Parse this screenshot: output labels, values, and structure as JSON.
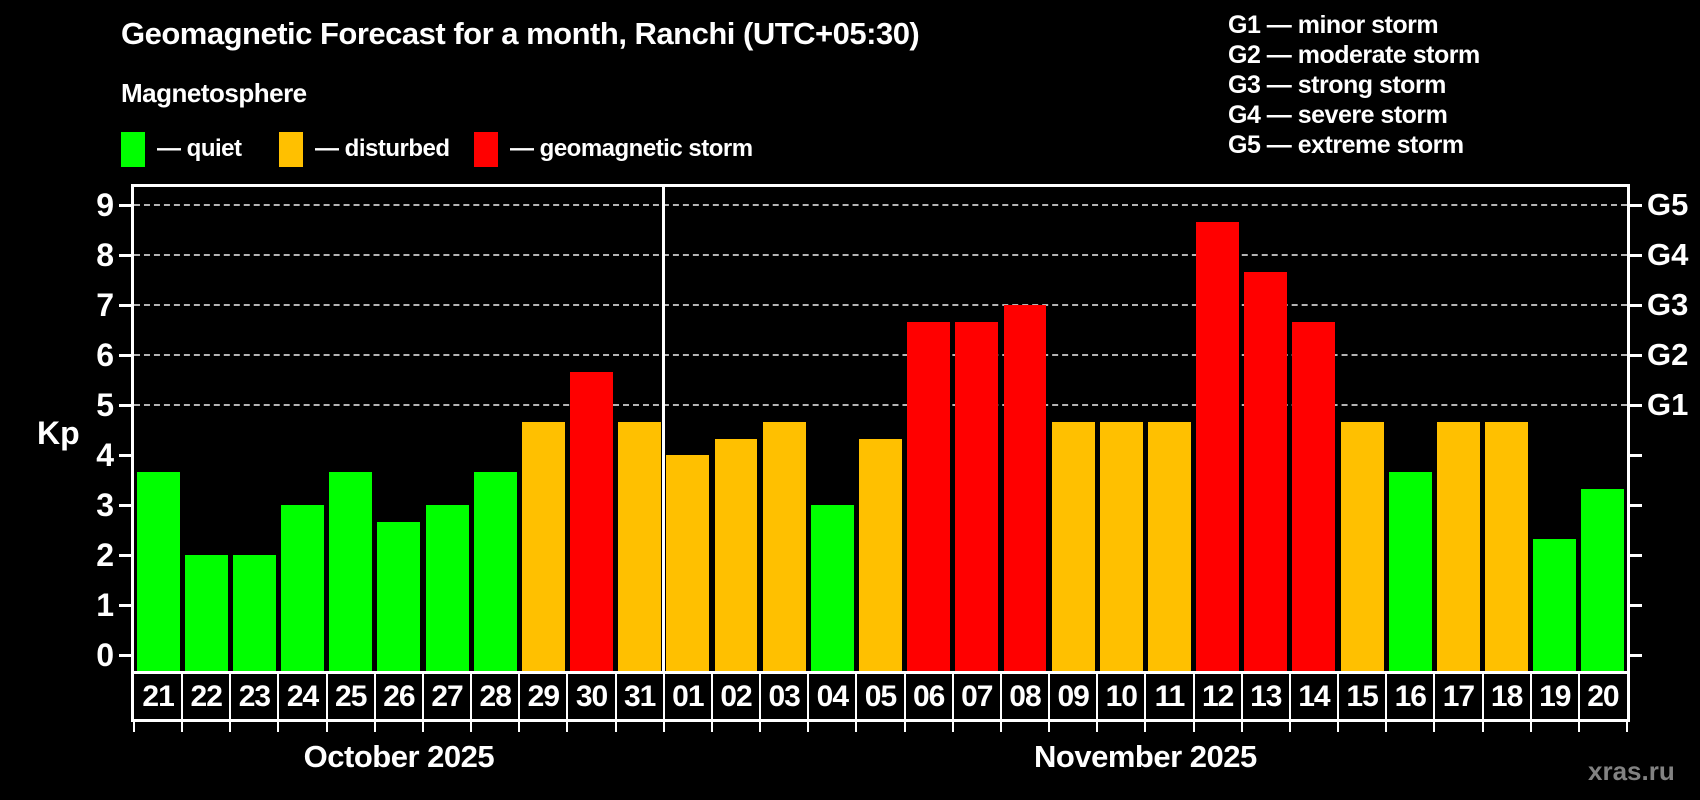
{
  "title": "Geomagnetic Forecast for a month, Ranchi (UTC+05:30)",
  "subtitle": "Magnetosphere",
  "legend": [
    {
      "key": "quiet",
      "label": "— quiet",
      "color": "#00ff00"
    },
    {
      "key": "disturbed",
      "label": "— disturbed",
      "color": "#ffc000"
    },
    {
      "key": "storm",
      "label": "— geomagnetic storm",
      "color": "#ff0000"
    }
  ],
  "g_legend": [
    "G1 — minor storm",
    "G2 — moderate storm",
    "G3 — strong storm",
    "G4 — severe storm",
    "G5 — extreme storm"
  ],
  "axis": {
    "kp_label": "Kp",
    "left_ticks": [
      "0",
      "1",
      "2",
      "3",
      "4",
      "5",
      "6",
      "7",
      "8",
      "9"
    ],
    "right_g_labels": [
      {
        "kp": 5,
        "label": "G1"
      },
      {
        "kp": 6,
        "label": "G2"
      },
      {
        "kp": 7,
        "label": "G3"
      },
      {
        "kp": 8,
        "label": "G4"
      },
      {
        "kp": 9,
        "label": "G5"
      }
    ],
    "grid_levels": [
      5,
      6,
      7,
      8,
      9
    ]
  },
  "watermark": "xras.ru",
  "chart_data": {
    "type": "bar",
    "title": "Geomagnetic Forecast for a month, Ranchi (UTC+05:30)",
    "xlabel": "",
    "ylabel": "Kp",
    "ylim": [
      0,
      9.33
    ],
    "grid": "dashed horizontal lines at Kp 5,6,7,8,9 (G1–G5 levels)",
    "legend_position": "top-left",
    "status_colors": {
      "quiet": "#00ff00",
      "disturbed": "#ffc000",
      "storm": "#ff0000"
    },
    "months": [
      {
        "label": "October 2025",
        "bars": [
          {
            "day": "21",
            "kp": 3.67,
            "status": "quiet"
          },
          {
            "day": "22",
            "kp": 2.0,
            "status": "quiet"
          },
          {
            "day": "23",
            "kp": 2.0,
            "status": "quiet"
          },
          {
            "day": "24",
            "kp": 3.0,
            "status": "quiet"
          },
          {
            "day": "25",
            "kp": 3.67,
            "status": "quiet"
          },
          {
            "day": "26",
            "kp": 2.67,
            "status": "quiet"
          },
          {
            "day": "27",
            "kp": 3.0,
            "status": "quiet"
          },
          {
            "day": "28",
            "kp": 3.67,
            "status": "quiet"
          },
          {
            "day": "29",
            "kp": 4.67,
            "status": "disturbed"
          },
          {
            "day": "30",
            "kp": 5.67,
            "status": "storm"
          },
          {
            "day": "31",
            "kp": 4.67,
            "status": "disturbed"
          }
        ]
      },
      {
        "label": "November 2025",
        "bars": [
          {
            "day": "01",
            "kp": 4.0,
            "status": "disturbed"
          },
          {
            "day": "02",
            "kp": 4.33,
            "status": "disturbed"
          },
          {
            "day": "03",
            "kp": 4.67,
            "status": "disturbed"
          },
          {
            "day": "04",
            "kp": 3.0,
            "status": "quiet"
          },
          {
            "day": "05",
            "kp": 4.33,
            "status": "disturbed"
          },
          {
            "day": "06",
            "kp": 6.67,
            "status": "storm"
          },
          {
            "day": "07",
            "kp": 6.67,
            "status": "storm"
          },
          {
            "day": "08",
            "kp": 7.0,
            "status": "storm"
          },
          {
            "day": "09",
            "kp": 4.67,
            "status": "disturbed"
          },
          {
            "day": "10",
            "kp": 4.67,
            "status": "disturbed"
          },
          {
            "day": "11",
            "kp": 4.67,
            "status": "disturbed"
          },
          {
            "day": "12",
            "kp": 8.67,
            "status": "storm"
          },
          {
            "day": "13",
            "kp": 7.67,
            "status": "storm"
          },
          {
            "day": "14",
            "kp": 6.67,
            "status": "storm"
          },
          {
            "day": "15",
            "kp": 4.67,
            "status": "disturbed"
          },
          {
            "day": "16",
            "kp": 3.67,
            "status": "quiet"
          },
          {
            "day": "17",
            "kp": 4.67,
            "status": "disturbed"
          },
          {
            "day": "18",
            "kp": 4.67,
            "status": "disturbed"
          },
          {
            "day": "19",
            "kp": 2.33,
            "status": "quiet"
          },
          {
            "day": "20",
            "kp": 3.33,
            "status": "quiet"
          }
        ]
      }
    ]
  }
}
